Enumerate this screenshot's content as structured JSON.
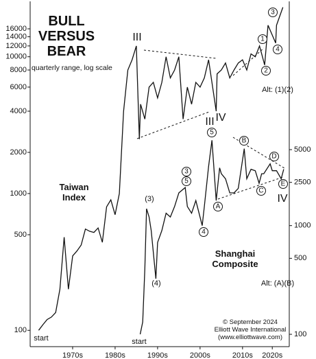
{
  "chart_data": {
    "type": "line",
    "title": "BULL VERSUS BEAR",
    "subtitle": "quarterly range, log scale",
    "log_scale": true,
    "xlim": [
      1965,
      2026
    ],
    "xticks": [
      {
        "value": 1975,
        "label": "1970s"
      },
      {
        "value": 1985,
        "label": "1980s"
      },
      {
        "value": 1995,
        "label": "1990s"
      },
      {
        "value": 2005,
        "label": "2000s"
      },
      {
        "value": 2015,
        "label": "2010s"
      },
      {
        "value": 2022,
        "label": "2020s"
      }
    ],
    "ylim": [
      76,
      25400
    ],
    "yticks": [
      100,
      500,
      1000,
      2000,
      4000,
      6000,
      8000,
      10000,
      12000,
      14000,
      16000
    ],
    "y2lim": [
      77,
      115600
    ],
    "y2ticks": [
      100,
      500,
      1000,
      2500,
      5000
    ],
    "series": [
      {
        "name": "Taiwan Index",
        "color": "#111111",
        "axis": "y",
        "x": [
          1967,
          1968,
          1969,
          1970,
          1971,
          1972,
          1973,
          1974,
          1975,
          1976,
          1977,
          1978,
          1979,
          1980,
          1981,
          1982,
          1983,
          1984,
          1985,
          1986,
          1987,
          1988,
          1989,
          1990,
          1990.7,
          1991,
          1992,
          1993,
          1994,
          1995,
          1996,
          1997,
          1998,
          1999,
          2000,
          2001,
          2002,
          2003,
          2004,
          2005,
          2006,
          2007,
          2008.8,
          2009,
          2010,
          2011,
          2012,
          2013,
          2014,
          2015,
          2016,
          2017,
          2018,
          2019,
          2020.2,
          2021,
          2022.8,
          2023,
          2024.5
        ],
        "values": [
          100,
          110,
          120,
          125,
          135,
          200,
          480,
          200,
          350,
          380,
          420,
          550,
          530,
          520,
          560,
          440,
          800,
          900,
          700,
          1000,
          4000,
          8000,
          9500,
          12000,
          2500,
          4500,
          3500,
          6000,
          6500,
          5000,
          6500,
          10000,
          7000,
          8000,
          10000,
          3500,
          6000,
          4500,
          6500,
          6000,
          7000,
          9500,
          4000,
          7500,
          8000,
          9000,
          7000,
          8000,
          9000,
          9500,
          8000,
          10500,
          10000,
          12000,
          8700,
          17000,
          12600,
          17000,
          23000
        ]
      },
      {
        "name": "Shanghai Composite",
        "color": "#111111",
        "axis": "y2",
        "x": [
          1990.9,
          1991.5,
          1992,
          1992.4,
          1993,
          1993.5,
          1994.6,
          1995,
          1996,
          1997,
          1998,
          1999,
          2000,
          2001.5,
          2002,
          2003,
          2004,
          2005.5,
          2006,
          2007,
          2007.8,
          2008.8,
          2009.6,
          2010,
          2011,
          2012,
          2013,
          2014,
          2015.4,
          2016,
          2017,
          2018,
          2018.9,
          2019.5,
          2020,
          2021.5,
          2022,
          2023,
          2024.1,
          2024.7
        ],
        "values": [
          100,
          130,
          400,
          1430,
          1200,
          900,
          325,
          700,
          900,
          1300,
          1200,
          1500,
          2000,
          2240,
          1500,
          1300,
          1700,
          1000,
          1500,
          3500,
          6100,
          1700,
          3400,
          3000,
          2700,
          2000,
          2000,
          2200,
          5100,
          2700,
          3300,
          3200,
          2450,
          3000,
          3000,
          3700,
          3200,
          3200,
          2700,
          3300
        ]
      }
    ],
    "annotations": [
      "III",
      "IV",
      "1",
      "2",
      "3",
      "4",
      "Alt: (1)(2)",
      "start",
      "III",
      "5",
      "3",
      "5",
      "(3)",
      "(4)",
      "4",
      "A",
      "B",
      "C",
      "D",
      "E",
      "IV",
      "Alt: (A)(B)",
      "start"
    ],
    "notes": [
      "© September 2024",
      "Elliott Wave International",
      "(www.elliottwave.com)"
    ]
  }
}
